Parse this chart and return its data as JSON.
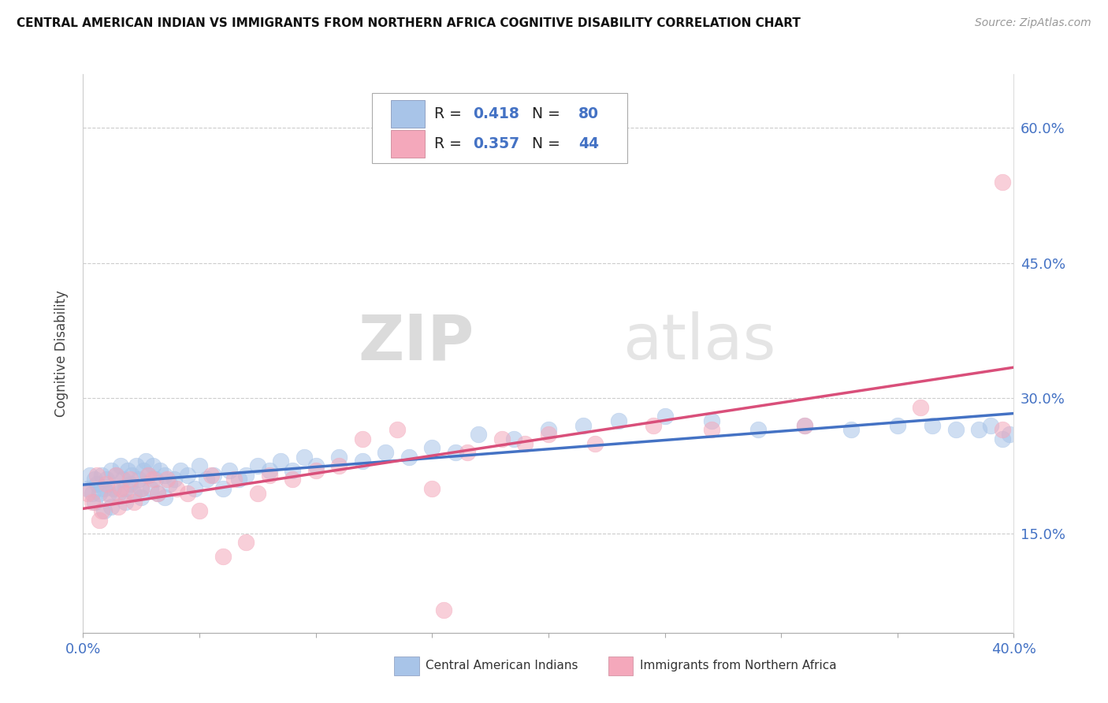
{
  "title": "CENTRAL AMERICAN INDIAN VS IMMIGRANTS FROM NORTHERN AFRICA COGNITIVE DISABILITY CORRELATION CHART",
  "source": "Source: ZipAtlas.com",
  "ylabel": "Cognitive Disability",
  "xlim": [
    0.0,
    0.4
  ],
  "ylim": [
    0.04,
    0.66
  ],
  "yticks": [
    0.15,
    0.3,
    0.45,
    0.6
  ],
  "ytick_labels": [
    "15.0%",
    "30.0%",
    "45.0%",
    "60.0%"
  ],
  "series1_label": "Central American Indians",
  "series2_label": "Immigrants from Northern Africa",
  "series1_color": "#a8c4e8",
  "series2_color": "#f4a8bb",
  "series1_line_color": "#4472c4",
  "series2_line_color": "#d94f7a",
  "series1_R": 0.418,
  "series1_N": 80,
  "series2_R": 0.357,
  "series2_N": 44,
  "watermark_zip": "ZIP",
  "watermark_atlas": "atlas",
  "series1_x": [
    0.002,
    0.003,
    0.004,
    0.005,
    0.006,
    0.007,
    0.008,
    0.009,
    0.01,
    0.011,
    0.012,
    0.013,
    0.014,
    0.015,
    0.016,
    0.017,
    0.018,
    0.019,
    0.02,
    0.021,
    0.022,
    0.023,
    0.024,
    0.025,
    0.026,
    0.027,
    0.028,
    0.029,
    0.03,
    0.031,
    0.032,
    0.033,
    0.035,
    0.037,
    0.039,
    0.042,
    0.045,
    0.048,
    0.05,
    0.053,
    0.056,
    0.06,
    0.063,
    0.067,
    0.07,
    0.075,
    0.08,
    0.085,
    0.09,
    0.095,
    0.1,
    0.11,
    0.12,
    0.13,
    0.14,
    0.15,
    0.16,
    0.17,
    0.185,
    0.2,
    0.215,
    0.23,
    0.25,
    0.27,
    0.29,
    0.31,
    0.33,
    0.35,
    0.365,
    0.375,
    0.385,
    0.39,
    0.395,
    0.398,
    0.005,
    0.009,
    0.012,
    0.018,
    0.025,
    0.035
  ],
  "series1_y": [
    0.2,
    0.215,
    0.195,
    0.21,
    0.205,
    0.195,
    0.215,
    0.2,
    0.21,
    0.195,
    0.22,
    0.2,
    0.215,
    0.195,
    0.225,
    0.21,
    0.2,
    0.22,
    0.205,
    0.215,
    0.195,
    0.225,
    0.21,
    0.2,
    0.22,
    0.23,
    0.215,
    0.2,
    0.225,
    0.21,
    0.195,
    0.22,
    0.215,
    0.205,
    0.21,
    0.22,
    0.215,
    0.2,
    0.225,
    0.21,
    0.215,
    0.2,
    0.22,
    0.21,
    0.215,
    0.225,
    0.22,
    0.23,
    0.22,
    0.235,
    0.225,
    0.235,
    0.23,
    0.24,
    0.235,
    0.245,
    0.24,
    0.26,
    0.255,
    0.265,
    0.27,
    0.275,
    0.28,
    0.275,
    0.265,
    0.27,
    0.265,
    0.27,
    0.27,
    0.265,
    0.265,
    0.27,
    0.255,
    0.26,
    0.185,
    0.175,
    0.18,
    0.185,
    0.19,
    0.19
  ],
  "series2_x": [
    0.002,
    0.004,
    0.006,
    0.008,
    0.01,
    0.012,
    0.014,
    0.016,
    0.018,
    0.02,
    0.022,
    0.025,
    0.028,
    0.032,
    0.036,
    0.04,
    0.045,
    0.05,
    0.055,
    0.06,
    0.065,
    0.07,
    0.075,
    0.08,
    0.09,
    0.1,
    0.11,
    0.12,
    0.135,
    0.15,
    0.165,
    0.18,
    0.2,
    0.22,
    0.245,
    0.27,
    0.31,
    0.36,
    0.395,
    0.007,
    0.015,
    0.03,
    0.19,
    0.155
  ],
  "series2_y": [
    0.195,
    0.185,
    0.215,
    0.175,
    0.205,
    0.19,
    0.215,
    0.2,
    0.195,
    0.21,
    0.185,
    0.2,
    0.215,
    0.195,
    0.21,
    0.2,
    0.195,
    0.175,
    0.215,
    0.125,
    0.21,
    0.14,
    0.195,
    0.215,
    0.21,
    0.22,
    0.225,
    0.255,
    0.265,
    0.2,
    0.24,
    0.255,
    0.26,
    0.25,
    0.27,
    0.265,
    0.27,
    0.29,
    0.265,
    0.165,
    0.18,
    0.21,
    0.25,
    0.065
  ]
}
